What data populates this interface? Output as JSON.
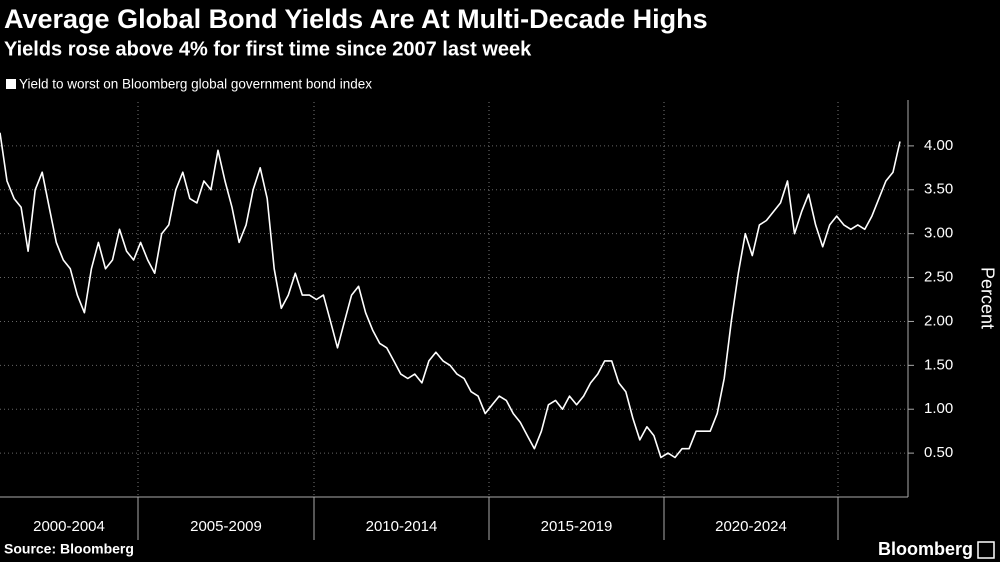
{
  "chart_data": {
    "type": "line",
    "title": "Average Global Bond Yields Are At Multi-Decade Highs",
    "subtitle": "Yields rose above 4% for first time since 2007 last week",
    "series": [
      {
        "name": "Yield to worst on Bloomberg global government bond index",
        "color": "#ffffff",
        "values": [
          4.15,
          3.6,
          3.4,
          3.3,
          2.8,
          3.5,
          3.7,
          3.3,
          2.9,
          2.7,
          2.6,
          2.3,
          2.1,
          2.6,
          2.9,
          2.6,
          2.7,
          3.05,
          2.8,
          2.7,
          2.9,
          2.7,
          2.55,
          3.0,
          3.1,
          3.5,
          3.7,
          3.4,
          3.35,
          3.6,
          3.5,
          3.95,
          3.6,
          3.3,
          2.9,
          3.1,
          3.5,
          3.75,
          3.4,
          2.6,
          2.15,
          2.3,
          2.55,
          2.3,
          2.3,
          2.25,
          2.3,
          2.0,
          1.7,
          2.0,
          2.3,
          2.4,
          2.1,
          1.9,
          1.75,
          1.7,
          1.55,
          1.4,
          1.35,
          1.4,
          1.3,
          1.55,
          1.65,
          1.55,
          1.5,
          1.4,
          1.35,
          1.2,
          1.15,
          0.95,
          1.05,
          1.15,
          1.1,
          0.95,
          0.85,
          0.7,
          0.55,
          0.75,
          1.05,
          1.1,
          1.0,
          1.15,
          1.05,
          1.15,
          1.3,
          1.4,
          1.55,
          1.55,
          1.3,
          1.2,
          0.9,
          0.65,
          0.8,
          0.7,
          0.45,
          0.5,
          0.45,
          0.55,
          0.55,
          0.75,
          0.75,
          0.75,
          0.95,
          1.35,
          2.0,
          2.55,
          3.0,
          2.75,
          3.1,
          3.15,
          3.25,
          3.35,
          3.6,
          3.0,
          3.25,
          3.45,
          3.1,
          2.85,
          3.1,
          3.2,
          3.1,
          3.05,
          3.1,
          3.05,
          3.2,
          3.4,
          3.6,
          3.7,
          4.05
        ]
      }
    ],
    "ylim": [
      0,
      4.5
    ],
    "yticks": [
      {
        "value": 0.5,
        "label": "0.50"
      },
      {
        "value": 1,
        "label": "1.00"
      },
      {
        "value": 1.5,
        "label": "1.50"
      },
      {
        "value": 2,
        "label": "2.00"
      },
      {
        "value": 2.5,
        "label": "2.50"
      },
      {
        "value": 3,
        "label": "3.00"
      },
      {
        "value": 3.5,
        "label": "3.50"
      },
      {
        "value": 4,
        "label": "4.00"
      }
    ],
    "y_label": "Percent",
    "period_labels": [
      "2000-2004",
      "2005-2009",
      "2010-2014",
      "2015-2019",
      "2020-2024"
    ],
    "grid": true,
    "source": "Source: Bloomberg",
    "brand": "Bloomberg"
  }
}
